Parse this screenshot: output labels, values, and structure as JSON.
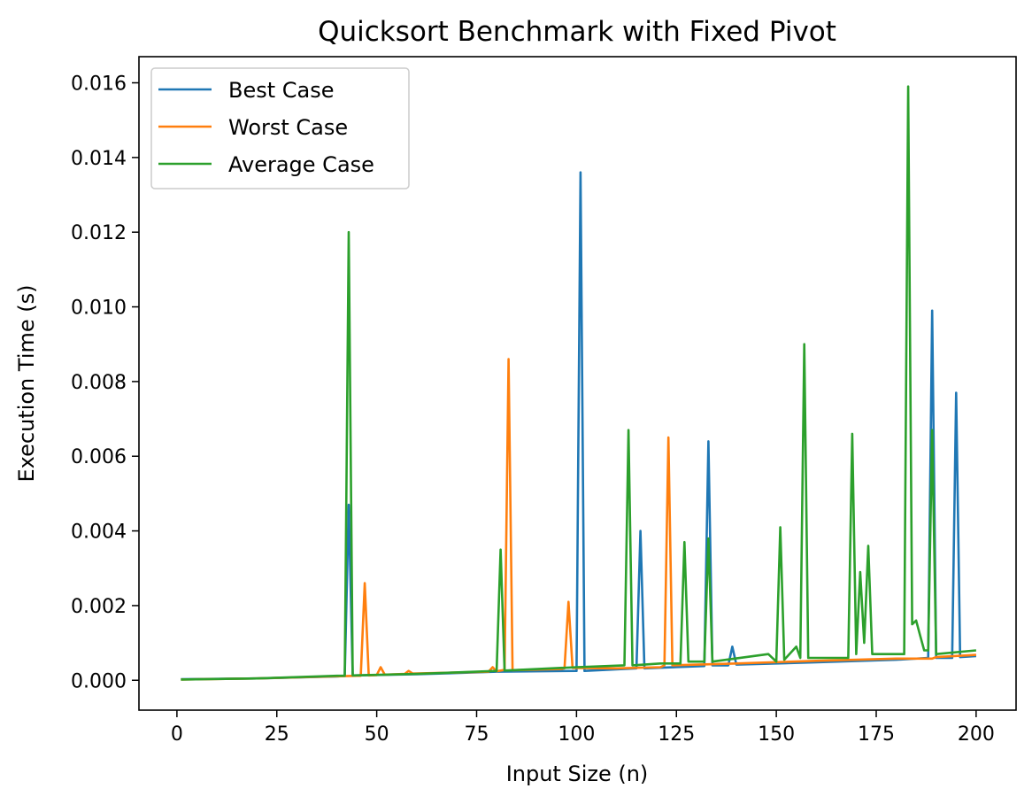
{
  "chart_data": {
    "type": "line",
    "title": "Quicksort Benchmark with Fixed Pivot",
    "xlabel": "Input Size (n)",
    "ylabel": "Execution Time (s)",
    "xlim": [
      -9.5,
      210
    ],
    "ylim": [
      -0.0008,
      0.0167
    ],
    "xticks": [
      0,
      25,
      50,
      75,
      100,
      125,
      150,
      175,
      200
    ],
    "yticks": [
      0.0,
      0.002,
      0.004,
      0.006,
      0.008,
      0.01,
      0.012,
      0.014,
      0.016
    ],
    "ytick_labels": [
      "0.000",
      "0.002",
      "0.004",
      "0.006",
      "0.008",
      "0.010",
      "0.012",
      "0.014",
      "0.016"
    ],
    "grid": false,
    "legend_position": "top-left",
    "series": [
      {
        "name": "Best Case",
        "color": "#1f77b4",
        "points": [
          [
            1,
            3e-05
          ],
          [
            20,
            5e-05
          ],
          [
            40,
            0.0001
          ],
          [
            42,
            0.00012
          ],
          [
            43,
            0.0047
          ],
          [
            44,
            0.00013
          ],
          [
            60,
            0.00016
          ],
          [
            80,
            0.00023
          ],
          [
            100,
            0.00025
          ],
          [
            101,
            0.0136
          ],
          [
            102,
            0.00025
          ],
          [
            115,
            0.00032
          ],
          [
            116,
            0.004
          ],
          [
            117,
            0.00032
          ],
          [
            132,
            0.00038
          ],
          [
            133,
            0.0064
          ],
          [
            134,
            0.0004
          ],
          [
            138,
            0.0004
          ],
          [
            139,
            0.0009
          ],
          [
            140,
            0.00042
          ],
          [
            160,
            0.00048
          ],
          [
            180,
            0.00055
          ],
          [
            188,
            0.0006
          ],
          [
            189,
            0.0099
          ],
          [
            190,
            0.0006
          ],
          [
            194,
            0.0006
          ],
          [
            195,
            0.0077
          ],
          [
            196,
            0.00062
          ],
          [
            200,
            0.00065
          ]
        ]
      },
      {
        "name": "Worst Case",
        "color": "#ff7f0e",
        "points": [
          [
            1,
            2e-05
          ],
          [
            20,
            5e-05
          ],
          [
            45,
            0.00012
          ],
          [
            46,
            0.00012
          ],
          [
            47,
            0.0026
          ],
          [
            48,
            0.00013
          ],
          [
            50,
            0.00014
          ],
          [
            51,
            0.00035
          ],
          [
            52,
            0.00015
          ],
          [
            57,
            0.00017
          ],
          [
            58,
            0.00025
          ],
          [
            59,
            0.00018
          ],
          [
            78,
            0.00023
          ],
          [
            79,
            0.00035
          ],
          [
            80,
            0.00024
          ],
          [
            81,
            0.00026
          ],
          [
            82,
            0.00028
          ],
          [
            83,
            0.0086
          ],
          [
            84,
            0.00027
          ],
          [
            96,
            0.0003
          ],
          [
            97,
            0.00032
          ],
          [
            98,
            0.0021
          ],
          [
            99,
            0.00033
          ],
          [
            110,
            0.00032
          ],
          [
            121,
            0.00035
          ],
          [
            122,
            0.0004
          ],
          [
            123,
            0.0065
          ],
          [
            124,
            0.0004
          ],
          [
            140,
            0.00045
          ],
          [
            160,
            0.00052
          ],
          [
            180,
            0.00058
          ],
          [
            189,
            0.00058
          ],
          [
            190,
            0.00062
          ],
          [
            200,
            0.00068
          ]
        ]
      },
      {
        "name": "Average Case",
        "color": "#2ca02c",
        "points": [
          [
            1,
            2e-05
          ],
          [
            20,
            5e-05
          ],
          [
            40,
            0.00012
          ],
          [
            42,
            0.00012
          ],
          [
            43,
            0.012
          ],
          [
            44,
            0.00013
          ],
          [
            60,
            0.00017
          ],
          [
            80,
            0.00025
          ],
          [
            81,
            0.0035
          ],
          [
            82,
            0.00026
          ],
          [
            100,
            0.00035
          ],
          [
            112,
            0.0004
          ],
          [
            113,
            0.0067
          ],
          [
            114,
            0.0004
          ],
          [
            121,
            0.00045
          ],
          [
            126,
            0.00045
          ],
          [
            127,
            0.0037
          ],
          [
            128,
            0.0005
          ],
          [
            132,
            0.0005
          ],
          [
            133,
            0.0038
          ],
          [
            134,
            0.0005
          ],
          [
            148,
            0.0007
          ],
          [
            150,
            0.0005
          ],
          [
            151,
            0.0041
          ],
          [
            152,
            0.00055
          ],
          [
            155,
            0.0009
          ],
          [
            156,
            0.0006
          ],
          [
            157,
            0.009
          ],
          [
            158,
            0.0006
          ],
          [
            168,
            0.0006
          ],
          [
            169,
            0.0066
          ],
          [
            170,
            0.0007
          ],
          [
            171,
            0.0029
          ],
          [
            172,
            0.001
          ],
          [
            173,
            0.0036
          ],
          [
            174,
            0.0007
          ],
          [
            182,
            0.0007
          ],
          [
            183,
            0.0159
          ],
          [
            184,
            0.0015
          ],
          [
            185,
            0.0016
          ],
          [
            186,
            0.0012
          ],
          [
            187,
            0.0008
          ],
          [
            188,
            0.0008
          ],
          [
            189,
            0.0067
          ],
          [
            190,
            0.0007
          ],
          [
            200,
            0.0008
          ]
        ]
      }
    ]
  }
}
